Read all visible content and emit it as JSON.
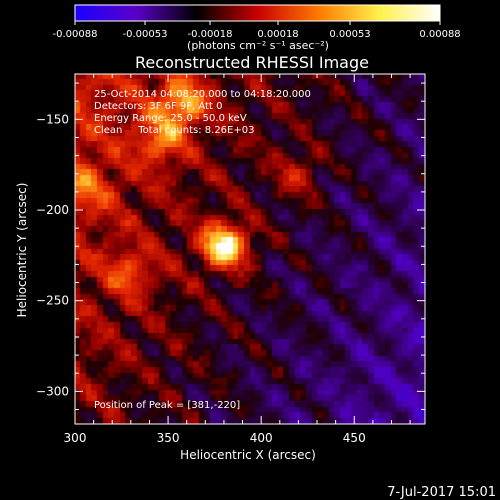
{
  "chart_data": {
    "type": "heatmap",
    "title": "Reconstructed RHESSI Image",
    "xlabel": "Heliocentric X (arcsec)",
    "ylabel": "Heliocentric Y (arcsec)",
    "xlim": [
      300,
      488
    ],
    "ylim": [
      -318,
      -125
    ],
    "x_ticks": [
      300,
      350,
      400,
      450
    ],
    "y_ticks": [
      -150,
      -200,
      -250,
      -300
    ],
    "colorbar": {
      "ticks": [
        "-0.00088",
        "-0.00053",
        "-0.00018",
        "0.00018",
        "0.00053",
        "0.00088"
      ],
      "range": [
        -0.00088,
        0.00088
      ],
      "unit_label": "(photons cm⁻² s⁻¹ asec⁻²)",
      "colors": [
        "#1a00ff",
        "#5a00c8",
        "#000000",
        "#c80000",
        "#ff7a00",
        "#fff04a",
        "#ffffff"
      ]
    },
    "annotations": [
      "25-Oct-2014 04:08:20.000 to 04:18:20.000",
      "Detectors: 3F 6F 9F, Att 0",
      "Energy Range: 25.0 - 50.0 keV",
      "Clean     Total counts: 8.26E+03"
    ],
    "peak_label": "Position of Peak = [381,-220]",
    "peak": {
      "x": 381,
      "y": -220,
      "value": 0.00088
    },
    "sources": [
      {
        "x": 381,
        "y": -220,
        "value": 0.00088
      },
      {
        "x": 358,
        "y": -142,
        "value": 0.00055
      },
      {
        "x": 346,
        "y": -162,
        "value": 0.0004
      },
      {
        "x": 330,
        "y": -235,
        "value": 0.00035
      },
      {
        "x": 420,
        "y": -180,
        "value": 0.0003
      },
      {
        "x": 306,
        "y": -188,
        "value": 0.0003
      }
    ],
    "grid": false
  },
  "footer": {
    "date": "7-Jul-2017 15:01"
  }
}
